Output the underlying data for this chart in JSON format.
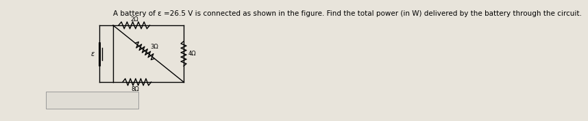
{
  "bg_color": "#e8e4db",
  "title_text": "A battery of ε =26.5 V is connected as shown in the figure. Find the total power (in W) delivered by the battery through the circuit.",
  "title_fontsize": 7.5,
  "circuit": {
    "resistor_2ohm_label": "2Ω",
    "resistor_3ohm_label": "3Ω",
    "resistor_4ohm_label": "4Ω",
    "resistor_8ohm_label": "8Ω",
    "label_color": "#000000",
    "line_color": "#000000"
  },
  "answer_box": {
    "facecolor": "#e0ddd5",
    "edgecolor": "#999999"
  }
}
